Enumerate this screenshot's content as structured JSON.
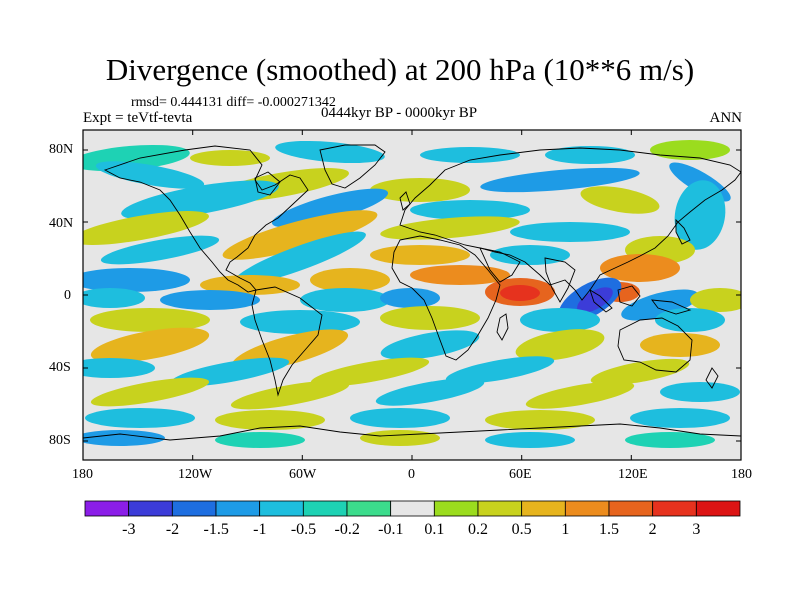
{
  "title": "Divergence (smoothed) at 200 hPa (10**6 m/s)",
  "stats": "rmsd= 0.444131 diff= -0.000271342",
  "expt": "Expt = teVtf-tevta",
  "period": "0444kyr BP - 0000kyr BP",
  "season": "ANN",
  "axes": {
    "lat_labels": [
      "80N",
      "40N",
      "0",
      "40S",
      "80S"
    ],
    "lon_labels": [
      "180",
      "120W",
      "60W",
      "0",
      "60E",
      "120E",
      "180"
    ]
  },
  "colorbar": {
    "levels": [
      "-3",
      "-2",
      "-1.5",
      "-1",
      "-0.5",
      "-0.2",
      "-0.1",
      "0.1",
      "0.2",
      "0.5",
      "1",
      "1.5",
      "2",
      "3"
    ],
    "colors": [
      "#8b1ee8",
      "#3c3cd8",
      "#1e6ee0",
      "#1e9be6",
      "#1ebede",
      "#1ed2b4",
      "#3cdc8c",
      "#e6e6e6",
      "#9bdc1e",
      "#c8d21e",
      "#e6b41e",
      "#ec8c1e",
      "#e6641e",
      "#e6321e",
      "#dc1414"
    ]
  },
  "map": {
    "background_color": "#e6e6e6",
    "coastline_color": "#000000"
  }
}
